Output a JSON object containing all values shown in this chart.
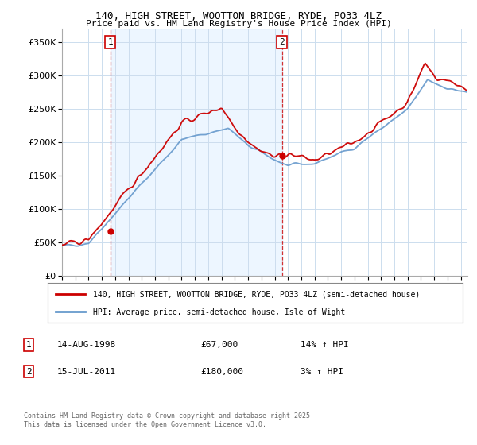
{
  "title1": "140, HIGH STREET, WOOTTON BRIDGE, RYDE, PO33 4LZ",
  "title2": "Price paid vs. HM Land Registry's House Price Index (HPI)",
  "legend_line1": "140, HIGH STREET, WOOTTON BRIDGE, RYDE, PO33 4LZ (semi-detached house)",
  "legend_line2": "HPI: Average price, semi-detached house, Isle of Wight",
  "annotation1_date": "14-AUG-1998",
  "annotation1_price": "£67,000",
  "annotation1_hpi": "14% ↑ HPI",
  "annotation2_date": "15-JUL-2011",
  "annotation2_price": "£180,000",
  "annotation2_hpi": "3% ↑ HPI",
  "footnote": "Contains HM Land Registry data © Crown copyright and database right 2025.\nThis data is licensed under the Open Government Licence v3.0.",
  "red_color": "#cc0000",
  "blue_color": "#6699cc",
  "blue_fill": "#ddeeff",
  "background_color": "#ffffff",
  "grid_color": "#ccddee",
  "ylim": [
    0,
    370000
  ],
  "yticks": [
    0,
    50000,
    100000,
    150000,
    200000,
    250000,
    300000,
    350000
  ],
  "sale1_year": 1998.625,
  "sale1_price": 67000,
  "sale2_year": 2011.542,
  "sale2_price": 180000
}
